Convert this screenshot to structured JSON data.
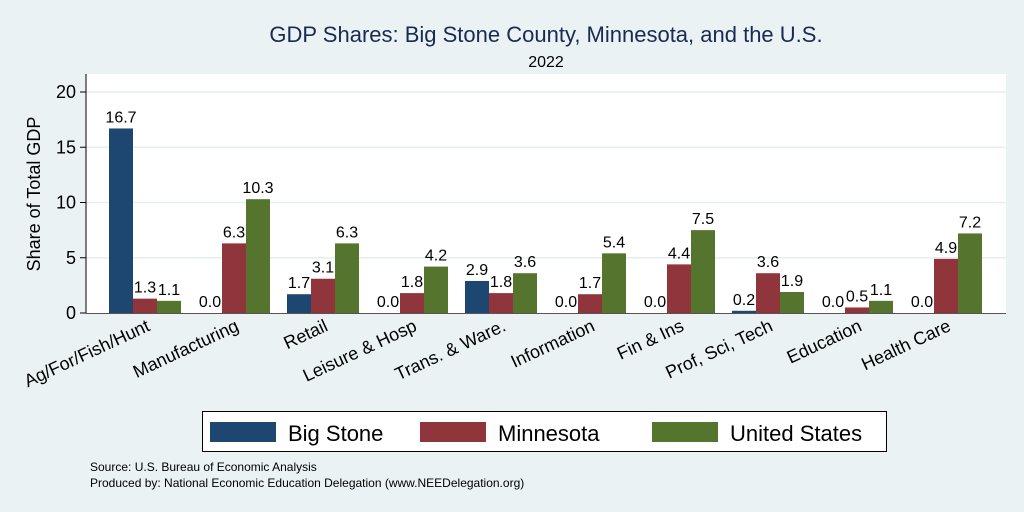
{
  "chart_data": {
    "type": "bar",
    "title": "GDP Shares: Big Stone County, Minnesota, and the U.S.",
    "subtitle": "2022",
    "xlabel": "",
    "ylabel": "Share of Total GDP",
    "ylim": [
      0,
      21.7
    ],
    "yticks": [
      0,
      5,
      10,
      15,
      20
    ],
    "grid": true,
    "legend_position": "bottom",
    "categories": [
      "Ag/For/Fish/Hunt",
      "Manufacturing",
      "Retail",
      "Leisure & Hosp",
      "Trans. & Ware.",
      "Information",
      "Fin & Ins",
      "Prof, Sci, Tech",
      "Education",
      "Health Care"
    ],
    "series": [
      {
        "name": "Big Stone",
        "color": "#1d4670",
        "values": [
          16.7,
          0.0,
          1.7,
          0.0,
          2.9,
          0.0,
          0.0,
          0.2,
          0.0,
          0.0
        ]
      },
      {
        "name": "Minnesota",
        "color": "#90353b",
        "values": [
          1.3,
          6.3,
          3.1,
          1.8,
          1.8,
          1.7,
          4.4,
          3.6,
          0.5,
          4.9
        ]
      },
      {
        "name": "United States",
        "color": "#55752f",
        "values": [
          1.1,
          10.3,
          6.3,
          4.2,
          3.6,
          5.4,
          7.5,
          1.9,
          1.1,
          7.2
        ]
      }
    ],
    "value_format_decimals": 1
  },
  "footer": {
    "source": "Source: U.S. Bureau of Economic Analysis",
    "produced_by": "Produced by: National Economic Education Delegation (www.NEEDelegation.org)"
  }
}
